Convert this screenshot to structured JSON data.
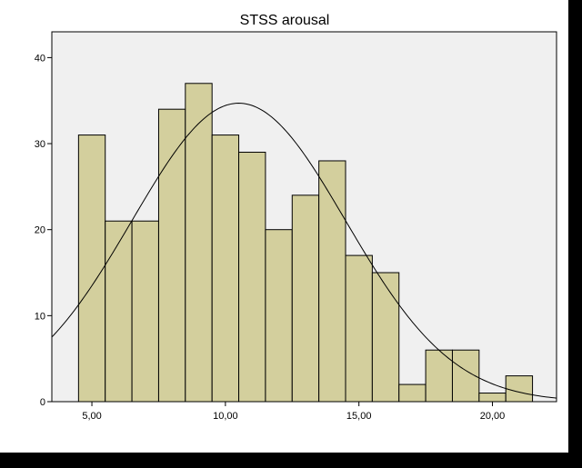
{
  "chart_data": {
    "type": "bar",
    "subtype": "histogram",
    "title": "STSS arousal",
    "xlabel": "",
    "ylabel": "",
    "bin_width": 1,
    "bins": [
      {
        "start": 4.5,
        "end": 5.5,
        "count": 31
      },
      {
        "start": 5.5,
        "end": 6.5,
        "count": 21
      },
      {
        "start": 6.5,
        "end": 7.5,
        "count": 21
      },
      {
        "start": 7.5,
        "end": 8.5,
        "count": 34
      },
      {
        "start": 8.5,
        "end": 9.5,
        "count": 37
      },
      {
        "start": 9.5,
        "end": 10.5,
        "count": 31
      },
      {
        "start": 10.5,
        "end": 11.5,
        "count": 29
      },
      {
        "start": 11.5,
        "end": 12.5,
        "count": 20
      },
      {
        "start": 12.5,
        "end": 13.5,
        "count": 24
      },
      {
        "start": 13.5,
        "end": 14.5,
        "count": 28
      },
      {
        "start": 14.5,
        "end": 15.5,
        "count": 17
      },
      {
        "start": 15.5,
        "end": 16.5,
        "count": 15
      },
      {
        "start": 16.5,
        "end": 17.5,
        "count": 2
      },
      {
        "start": 17.5,
        "end": 18.5,
        "count": 6
      },
      {
        "start": 18.5,
        "end": 19.5,
        "count": 6
      },
      {
        "start": 19.5,
        "end": 20.5,
        "count": 1
      },
      {
        "start": 20.5,
        "end": 21.5,
        "count": 3
      }
    ],
    "normal_curve": {
      "mean": 10.5,
      "sd": 4.0,
      "peak": 34.7
    },
    "xlim": [
      3.5,
      22.4
    ],
    "ylim": [
      0,
      43
    ],
    "x_ticks": [
      {
        "value": 5,
        "label": "5,00"
      },
      {
        "value": 10,
        "label": "10,00"
      },
      {
        "value": 15,
        "label": "15,00"
      },
      {
        "value": 20,
        "label": "20,00"
      }
    ],
    "y_ticks": [
      {
        "value": 0,
        "label": "0"
      },
      {
        "value": 10,
        "label": "10"
      },
      {
        "value": 20,
        "label": "20"
      },
      {
        "value": 30,
        "label": "30"
      },
      {
        "value": 40,
        "label": "40"
      }
    ],
    "grid": false,
    "legend": "none",
    "colors": {
      "plot_background": "#f0f0f0",
      "bar_fill": "#d3cf9d",
      "bar_stroke": "#000000",
      "curve": "#000000"
    }
  }
}
